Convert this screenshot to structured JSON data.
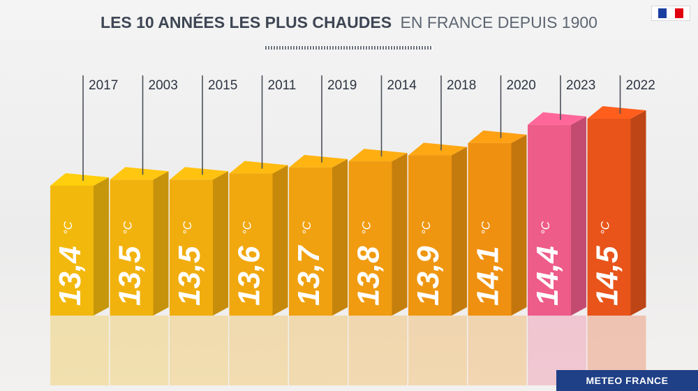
{
  "title": {
    "bold": "LES 10 ANNÉES LES PLUS CHAUDES",
    "light": "EN FRANCE DEPUIS 1900"
  },
  "source": "METEO FRANCE",
  "flag_icon": "french-republic-flag-icon",
  "colors": {
    "highlight_bar": "#ee5c8a",
    "highlight_year": "#9b3fb2",
    "hottest_bar": "#e8541a"
  },
  "chart_data": {
    "type": "bar",
    "title": "LES 10 ANNÉES LES PLUS CHAUDES EN FRANCE DEPUIS 1900",
    "xlabel": "",
    "ylabel": "",
    "unit": "°C",
    "categories": [
      "2017",
      "2003",
      "2015",
      "2011",
      "2019",
      "2014",
      "2018",
      "2020",
      "2023",
      "2022"
    ],
    "values": [
      13.4,
      13.5,
      13.5,
      13.6,
      13.7,
      13.8,
      13.9,
      14.1,
      14.4,
      14.5
    ],
    "labels": [
      "13,4",
      "13,5",
      "13,5",
      "13,6",
      "13,7",
      "13,8",
      "13,9",
      "14,1",
      "14,4",
      "14,5"
    ],
    "highlight": "2023",
    "grid": false,
    "legend": "none"
  }
}
